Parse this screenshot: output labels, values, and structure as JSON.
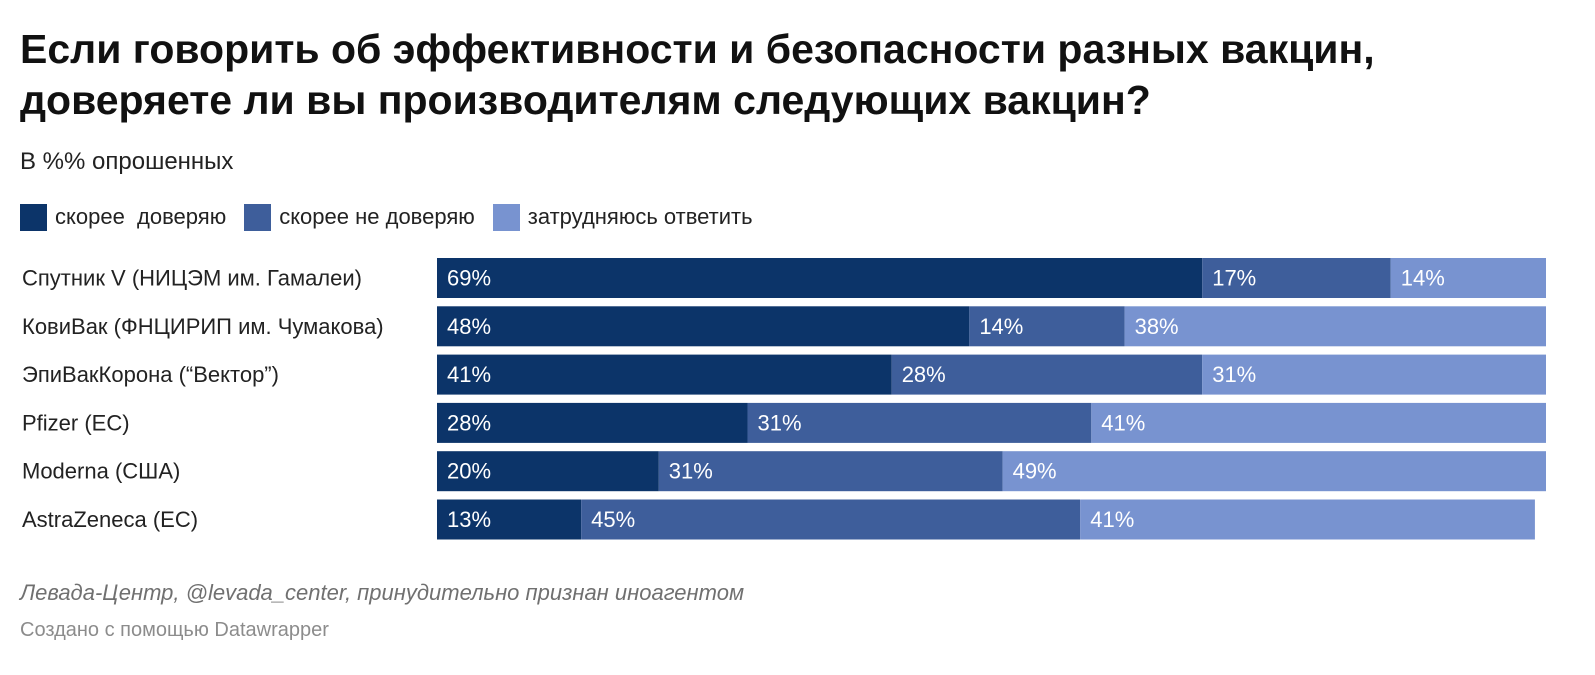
{
  "chart_data": {
    "type": "bar",
    "orientation": "horizontal",
    "stacked": true,
    "title": "Если говорить об эффективности и безопасности разных вакцин, доверяете ли вы производителям следующих вакцин?",
    "title_lines": [
      "Если говорить об эффективности и безопасности разных вакцин,",
      "доверяете ли вы производителям следующих вакцин?"
    ],
    "subtitle": "В %% опрошенных",
    "legend_position": "top-left",
    "xlim": [
      0,
      100
    ],
    "unit": "%",
    "categories": [
      "Спутник V (НИЦЭМ им. Гамалеи)",
      "КовиВак (ФНЦИРИП им. Чумакова)",
      "ЭпиВакКорона (“Вектор”)",
      "Pfizer (ЕС)",
      "Moderna (США)",
      "AstraZeneca (ЕС)"
    ],
    "series": [
      {
        "name": "скорее  доверяю",
        "color": "#0c3469",
        "label_color": "#ffffff",
        "values": [
          69,
          48,
          41,
          28,
          20,
          13
        ]
      },
      {
        "name": "скорее не доверяю",
        "color": "#3e5e9b",
        "label_color": "#ffffff",
        "values": [
          17,
          14,
          28,
          31,
          31,
          45
        ]
      },
      {
        "name": "затрудняюсь ответить",
        "color": "#7893d0",
        "label_color": "#ffffff",
        "values": [
          14,
          38,
          31,
          41,
          49,
          41
        ]
      }
    ]
  },
  "footer": {
    "source": "Левада-Центр, @levada_center, принудительно признан иноагентом",
    "credit": "Создано с помощью Datawrapper"
  }
}
